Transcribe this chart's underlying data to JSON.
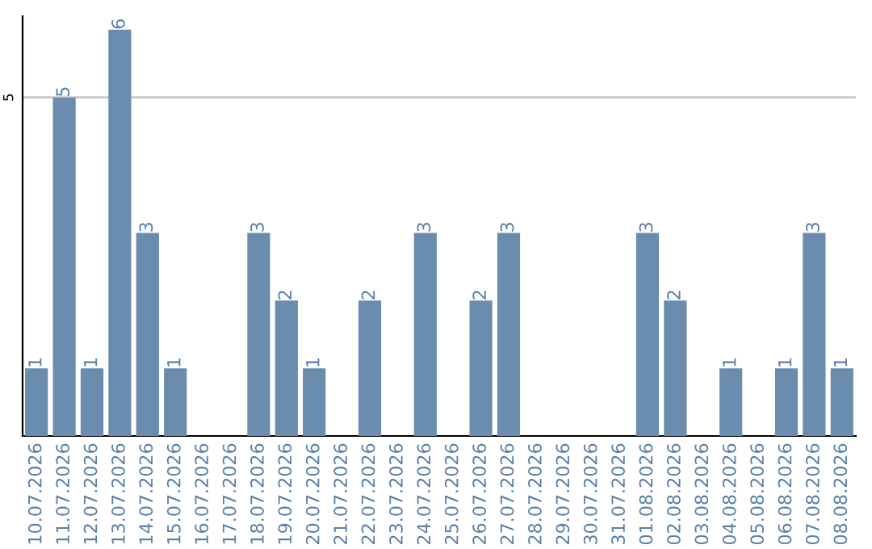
{
  "chart_data": {
    "type": "bar",
    "categories": [
      "10.07.2026",
      "11.07.2026",
      "12.07.2026",
      "13.07.2026",
      "14.07.2026",
      "15.07.2026",
      "16.07.2026",
      "17.07.2026",
      "18.07.2026",
      "19.07.2026",
      "20.07.2026",
      "21.07.2026",
      "22.07.2026",
      "23.07.2026",
      "24.07.2026",
      "25.07.2026",
      "26.07.2026",
      "27.07.2026",
      "28.07.2026",
      "29.07.2026",
      "30.07.2026",
      "31.07.2026",
      "01.08.2026",
      "02.08.2026",
      "03.08.2026",
      "04.08.2026",
      "05.08.2026",
      "06.08.2026",
      "07.08.2026",
      "08.08.2026"
    ],
    "values": [
      1,
      5,
      1,
      6,
      3,
      1,
      0,
      0,
      3,
      2,
      1,
      0,
      2,
      0,
      3,
      0,
      2,
      3,
      0,
      0,
      0,
      0,
      3,
      2,
      0,
      1,
      0,
      1,
      3,
      1
    ],
    "value_labels": [
      "1",
      "5",
      "1",
      "6",
      "3",
      "1",
      null,
      null,
      "3",
      "2",
      "1",
      null,
      "2",
      null,
      "3",
      null,
      "2",
      "3",
      null,
      null,
      null,
      null,
      "3",
      "2",
      null,
      "1",
      null,
      "1",
      "3",
      "1"
    ],
    "color": "#6a8caf",
    "ylim": [
      0,
      6.2
    ],
    "yticks": [
      5
    ],
    "grid": "y"
  }
}
